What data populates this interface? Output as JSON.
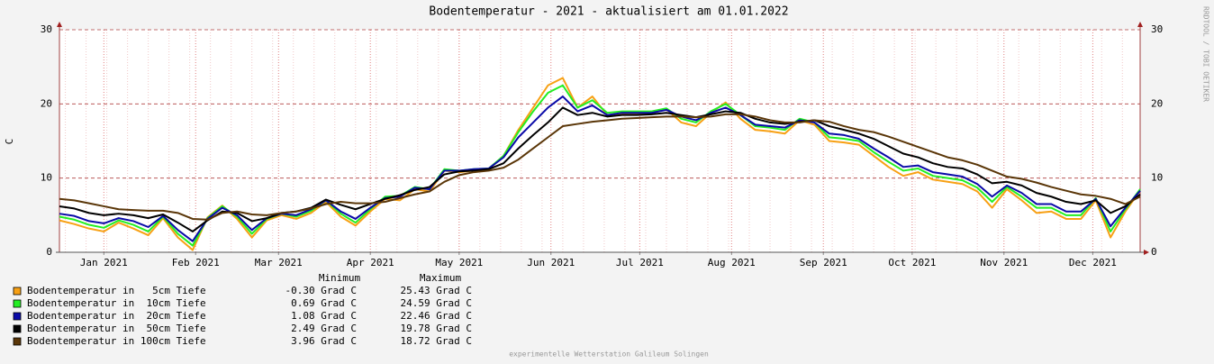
{
  "chart_data": {
    "type": "line",
    "title": "Bodentemperatur - 2021 - aktualisiert am 01.01.2022",
    "y_label": "C",
    "side_note": "RRDTOOL / TOBI OETIKER",
    "footer": "experimentelle Wetterstation Galileum Solingen",
    "legend_headers": [
      "Minimum",
      "Maximum"
    ],
    "xlim": [
      -15,
      350
    ],
    "xticks": [
      {
        "value": 0,
        "label": "Jan 2021"
      },
      {
        "value": 31,
        "label": "Feb 2021"
      },
      {
        "value": 59,
        "label": "Mar 2021"
      },
      {
        "value": 90,
        "label": "Apr 2021"
      },
      {
        "value": 120,
        "label": "May 2021"
      },
      {
        "value": 151,
        "label": "Jun 2021"
      },
      {
        "value": 181,
        "label": "Jul 2021"
      },
      {
        "value": 212,
        "label": "Aug 2021"
      },
      {
        "value": 243,
        "label": "Sep 2021"
      },
      {
        "value": 273,
        "label": "Oct 2021"
      },
      {
        "value": 304,
        "label": "Nov 2021"
      },
      {
        "value": 334,
        "label": "Dec 2021"
      }
    ],
    "ylim": [
      0,
      30
    ],
    "yticks": [
      0,
      10,
      20,
      30
    ],
    "grid": true,
    "x": [
      -15,
      -10,
      -5,
      0,
      5,
      10,
      15,
      20,
      25,
      30,
      35,
      40,
      45,
      50,
      55,
      60,
      65,
      70,
      75,
      80,
      85,
      90,
      95,
      100,
      105,
      110,
      115,
      120,
      125,
      130,
      135,
      140,
      145,
      150,
      155,
      160,
      165,
      170,
      175,
      180,
      185,
      190,
      195,
      200,
      205,
      210,
      215,
      220,
      225,
      230,
      235,
      240,
      245,
      250,
      255,
      260,
      265,
      270,
      275,
      280,
      285,
      290,
      295,
      300,
      305,
      310,
      315,
      320,
      325,
      330,
      335,
      340,
      345,
      350
    ],
    "series": [
      {
        "name": "Bodentemperatur in   5cm Tiefe",
        "color": "#f7a014",
        "minimum": "-0.30 Grad C",
        "maximum": "25.43 Grad C",
        "values": [
          4.3,
          3.8,
          3.2,
          2.8,
          4.0,
          3.2,
          2.3,
          4.6,
          2.0,
          0.3,
          4.7,
          6.3,
          4.5,
          2.0,
          4.3,
          5.0,
          4.5,
          5.3,
          6.8,
          4.8,
          3.6,
          5.5,
          7.2,
          7.0,
          8.5,
          8.2,
          11.0,
          10.8,
          11.0,
          11.2,
          13.0,
          16.5,
          19.5,
          22.5,
          23.5,
          19.5,
          21.0,
          18.5,
          18.6,
          18.7,
          18.8,
          19.3,
          17.5,
          17.0,
          18.8,
          20.2,
          18.0,
          16.5,
          16.3,
          16.0,
          17.8,
          17.2,
          15.0,
          14.8,
          14.5,
          13.0,
          11.5,
          10.3,
          10.8,
          9.8,
          9.5,
          9.2,
          8.2,
          6.0,
          8.5,
          7.0,
          5.3,
          5.5,
          4.5,
          4.5,
          7.0,
          2.0,
          5.5,
          8.3
        ]
      },
      {
        "name": "Bodentemperatur in  10cm Tiefe",
        "color": "#22ee22",
        "minimum": "0.69 Grad C",
        "maximum": "24.59 Grad C",
        "values": [
          4.8,
          4.4,
          3.7,
          3.3,
          4.3,
          3.7,
          2.8,
          4.8,
          2.5,
          0.9,
          4.6,
          6.2,
          4.8,
          2.5,
          4.5,
          5.2,
          4.8,
          5.6,
          7.0,
          5.2,
          4.0,
          5.8,
          7.5,
          7.6,
          8.8,
          8.5,
          11.2,
          11.0,
          11.2,
          11.3,
          13.0,
          16.2,
          19.0,
          21.5,
          22.5,
          19.5,
          20.5,
          18.8,
          19.0,
          19.0,
          19.0,
          19.4,
          18.0,
          17.5,
          19.0,
          20.0,
          18.5,
          17.0,
          16.8,
          16.5,
          18.0,
          17.5,
          15.5,
          15.3,
          15.0,
          13.5,
          12.2,
          11.0,
          11.3,
          10.3,
          10.0,
          9.7,
          8.7,
          6.8,
          8.8,
          7.5,
          6.0,
          6.0,
          5.0,
          5.0,
          7.3,
          2.8,
          5.8,
          8.5
        ]
      },
      {
        "name": "Bodentemperatur in  20cm Tiefe",
        "color": "#0a0aa8",
        "minimum": "1.08 Grad C",
        "maximum": "22.46 Grad C",
        "values": [
          5.2,
          4.9,
          4.2,
          3.9,
          4.6,
          4.2,
          3.4,
          4.9,
          3.0,
          1.5,
          4.5,
          6.0,
          5.0,
          3.0,
          4.6,
          5.2,
          5.0,
          5.8,
          7.0,
          5.5,
          4.5,
          6.0,
          7.3,
          7.5,
          8.7,
          8.5,
          11.0,
          11.0,
          11.2,
          11.3,
          12.8,
          15.5,
          17.5,
          19.5,
          21.0,
          19.0,
          19.8,
          18.5,
          18.8,
          18.8,
          18.8,
          19.2,
          18.3,
          17.8,
          18.8,
          19.5,
          18.5,
          17.2,
          17.0,
          16.8,
          17.8,
          17.5,
          16.0,
          15.8,
          15.3,
          14.0,
          12.8,
          11.5,
          11.7,
          10.8,
          10.5,
          10.2,
          9.2,
          7.5,
          9.0,
          8.0,
          6.5,
          6.5,
          5.5,
          5.5,
          7.2,
          3.5,
          6.0,
          8.3
        ]
      },
      {
        "name": "Bodentemperatur in  50cm Tiefe",
        "color": "#000000",
        "minimum": "2.49 Grad C",
        "maximum": "19.78 Grad C",
        "values": [
          6.2,
          5.9,
          5.3,
          5.0,
          5.2,
          5.0,
          4.6,
          5.1,
          4.0,
          2.8,
          4.3,
          5.5,
          5.3,
          4.2,
          4.6,
          5.3,
          5.5,
          6.0,
          7.1,
          6.4,
          5.8,
          6.5,
          7.2,
          7.7,
          8.4,
          8.8,
          10.5,
          10.9,
          11.0,
          11.2,
          12.0,
          14.0,
          15.8,
          17.5,
          19.5,
          18.5,
          18.8,
          18.3,
          18.5,
          18.5,
          18.6,
          18.8,
          18.5,
          18.2,
          18.6,
          19.0,
          18.8,
          18.0,
          17.5,
          17.3,
          17.6,
          17.8,
          17.0,
          16.5,
          16.0,
          15.3,
          14.3,
          13.3,
          12.8,
          12.0,
          11.5,
          11.3,
          10.5,
          9.3,
          9.5,
          9.0,
          8.0,
          7.5,
          6.8,
          6.5,
          7.0,
          5.3,
          6.2,
          7.8
        ]
      },
      {
        "name": "Bodentemperatur in 100cm Tiefe",
        "color": "#5a3608",
        "minimum": "3.96 Grad C",
        "maximum": "18.72 Grad C",
        "values": [
          7.2,
          7.0,
          6.6,
          6.2,
          5.8,
          5.7,
          5.6,
          5.6,
          5.3,
          4.5,
          4.4,
          5.3,
          5.5,
          5.1,
          5.0,
          5.3,
          5.5,
          5.9,
          6.5,
          6.8,
          6.6,
          6.6,
          6.8,
          7.3,
          7.8,
          8.2,
          9.5,
          10.4,
          10.8,
          11.0,
          11.4,
          12.5,
          14.0,
          15.5,
          17.0,
          17.3,
          17.6,
          17.8,
          18.0,
          18.1,
          18.2,
          18.3,
          18.3,
          18.2,
          18.3,
          18.6,
          18.6,
          18.3,
          17.8,
          17.5,
          17.5,
          17.8,
          17.6,
          17.0,
          16.5,
          16.2,
          15.6,
          14.9,
          14.2,
          13.5,
          12.8,
          12.4,
          11.8,
          11.0,
          10.2,
          9.9,
          9.4,
          8.8,
          8.3,
          7.8,
          7.6,
          7.2,
          6.5,
          7.5
        ]
      }
    ]
  }
}
